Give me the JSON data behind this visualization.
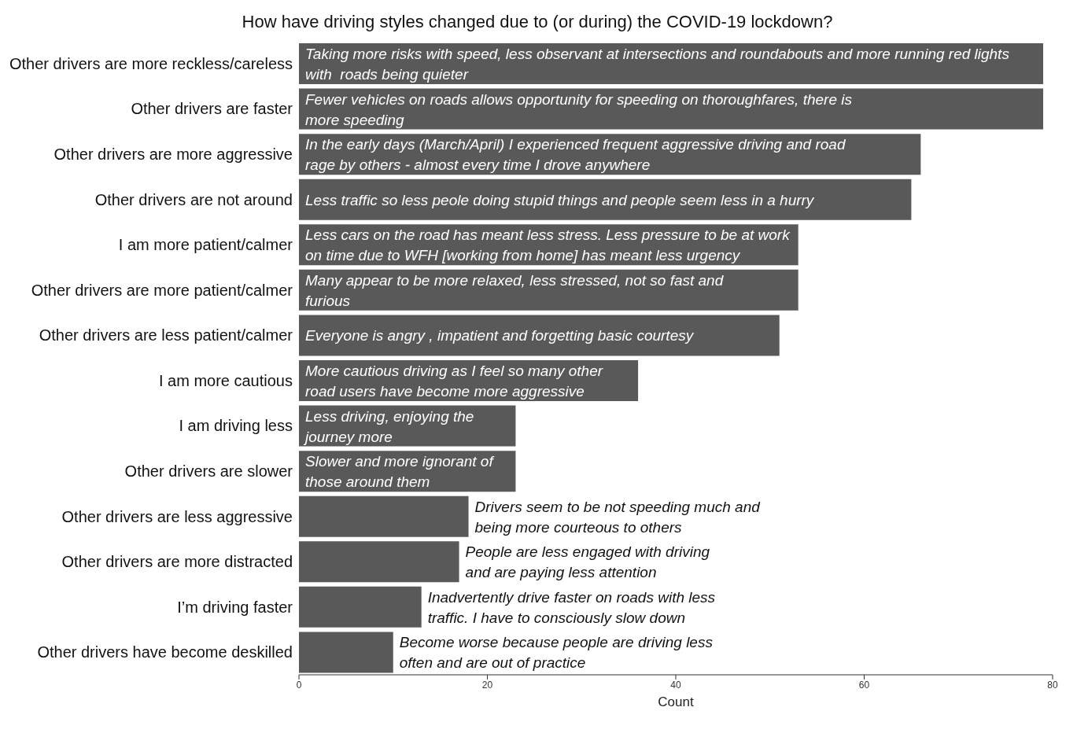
{
  "chart_data": {
    "type": "bar",
    "orientation": "horizontal",
    "title": "How have driving styles changed due to (or during) the COVID-19 lockdown?",
    "xlabel": "Count",
    "categories": [
      "Other drivers are more reckless/careless",
      "Other drivers are faster",
      "Other drivers are more aggressive",
      "Other drivers  are not around",
      "I am more patient/calmer",
      "Other drivers are more patient/calmer",
      "Other drivers are less patient/calmer",
      "I am more cautious",
      "I am driving less",
      "Other drivers are slower",
      "Other drivers are less aggressive",
      "Other drivers are more distracted",
      "I’m driving faster",
      "Other drivers have become deskilled"
    ],
    "values": [
      79,
      79,
      66,
      65,
      53,
      53,
      51,
      36,
      23,
      23,
      18,
      17,
      13,
      10
    ],
    "color": "#595959",
    "xlim": [
      0,
      80
    ],
    "xticks": [
      0,
      20,
      40,
      60,
      80
    ],
    "grid": false,
    "legend": false,
    "annotations": [
      {
        "text": "Taking more risks with speed, less observant at intersections and roundabouts and more running red lights\nwith  roads being quieter",
        "x": 0,
        "y": "Other drivers are more reckless/careless"
      },
      {
        "text": "Fewer vehicles on roads allows opportunity for speeding on thoroughfares, there is\nmore speeding",
        "x": 0,
        "y": "Other drivers are faster"
      },
      {
        "text": "In the early days (March/April) I experienced frequent aggressive driving and road\nrage by others - almost every time I drove anywhere",
        "x": 0,
        "y": "Other drivers are more aggressive"
      },
      {
        "text": "Less traffic so less peole doing stupid things and people seem less in a hurry",
        "x": 0,
        "y": "Other drivers  are not around"
      },
      {
        "text": "Less cars on the road has meant less stress. Less pressure to be at work\non time due to WFH [working from home] has meant less urgency",
        "x": 0,
        "y": "I am more patient/calmer"
      },
      {
        "text": "Many appear to be more relaxed, less stressed, not so fast and\nfurious",
        "x": 0,
        "y": "Other drivers are more patient/calmer"
      },
      {
        "text": "Everyone is angry , impatient and forgetting basic courtesy",
        "x": 0,
        "y": "Other drivers are less patient/calmer"
      },
      {
        "text": "More cautious driving as I feel so many other\nroad users have become more aggressive",
        "x": 0,
        "y": "I am more cautious"
      },
      {
        "text": "Less driving, enjoying the\njourney more",
        "x": 0,
        "y": "I am driving less"
      },
      {
        "text": "Slower and more ignorant of\nthose around them",
        "x": 0,
        "y": "Other drivers are slower"
      },
      {
        "text": "Drivers seem to be not speeding much and\nbeing more courteous to others",
        "x": 18,
        "y": "Other drivers are less aggressive"
      },
      {
        "text": "People are less engaged with driving\nand are paying less attention",
        "x": 17,
        "y": "Other drivers are more distracted"
      },
      {
        "text": "Inadvertently drive faster on roads with less\ntraffic. I have to consciously slow down",
        "x": 13,
        "y": "I’m driving faster"
      },
      {
        "text": "Become worse because people are driving less\noften and are out of practice",
        "x": 10,
        "y": "Other drivers have become deskilled"
      }
    ]
  }
}
